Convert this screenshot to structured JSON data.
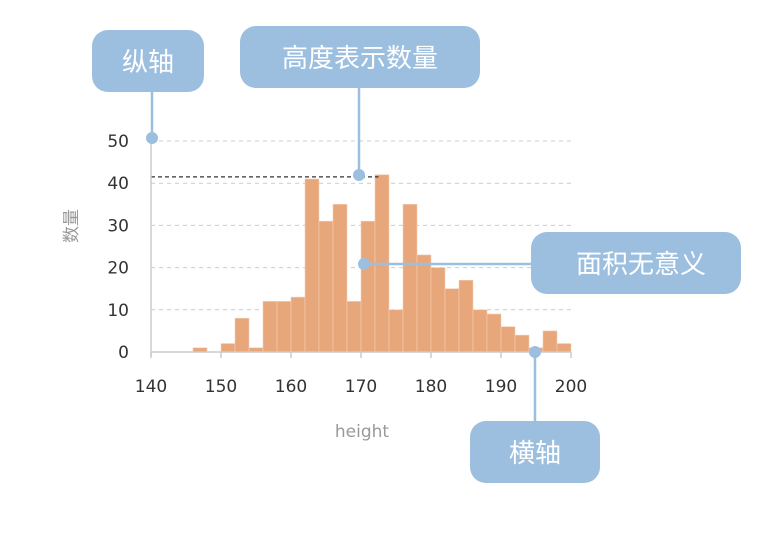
{
  "chart_data": {
    "type": "bar",
    "xlabel": "height",
    "ylabel": "数量",
    "xlim": [
      140,
      200
    ],
    "ylim": [
      0,
      50
    ],
    "x_ticks": [
      140,
      150,
      160,
      170,
      180,
      190,
      200
    ],
    "y_ticks": [
      0,
      10,
      20,
      30,
      40,
      50
    ],
    "grid": true,
    "bin_width": 2,
    "bins": [
      {
        "x0": 140,
        "x1": 142,
        "value": 0
      },
      {
        "x0": 142,
        "x1": 144,
        "value": 0
      },
      {
        "x0": 144,
        "x1": 146,
        "value": 0
      },
      {
        "x0": 146,
        "x1": 148,
        "value": 1
      },
      {
        "x0": 148,
        "x1": 150,
        "value": 0
      },
      {
        "x0": 150,
        "x1": 152,
        "value": 2
      },
      {
        "x0": 152,
        "x1": 154,
        "value": 8
      },
      {
        "x0": 154,
        "x1": 156,
        "value": 1
      },
      {
        "x0": 156,
        "x1": 158,
        "value": 12
      },
      {
        "x0": 158,
        "x1": 160,
        "value": 12
      },
      {
        "x0": 160,
        "x1": 162,
        "value": 13
      },
      {
        "x0": 162,
        "x1": 164,
        "value": 41
      },
      {
        "x0": 164,
        "x1": 166,
        "value": 31
      },
      {
        "x0": 166,
        "x1": 168,
        "value": 35
      },
      {
        "x0": 168,
        "x1": 170,
        "value": 12
      },
      {
        "x0": 170,
        "x1": 172,
        "value": 31
      },
      {
        "x0": 172,
        "x1": 174,
        "value": 42
      },
      {
        "x0": 174,
        "x1": 176,
        "value": 10
      },
      {
        "x0": 176,
        "x1": 178,
        "value": 35
      },
      {
        "x0": 178,
        "x1": 180,
        "value": 23
      },
      {
        "x0": 180,
        "x1": 182,
        "value": 20
      },
      {
        "x0": 182,
        "x1": 184,
        "value": 15
      },
      {
        "x0": 184,
        "x1": 186,
        "value": 17
      },
      {
        "x0": 186,
        "x1": 188,
        "value": 10
      },
      {
        "x0": 188,
        "x1": 190,
        "value": 9
      },
      {
        "x0": 190,
        "x1": 192,
        "value": 6
      },
      {
        "x0": 192,
        "x1": 194,
        "value": 4
      },
      {
        "x0": 194,
        "x1": 196,
        "value": 1
      },
      {
        "x0": 196,
        "x1": 198,
        "value": 5
      },
      {
        "x0": 198,
        "x1": 200,
        "value": 2
      }
    ],
    "bar_color": "#e8a77b",
    "reference_line_value": 41.5
  },
  "annotations": {
    "y_axis": "纵轴",
    "bar_height": "高度表示数量",
    "area": "面积无意义",
    "x_axis": "横轴",
    "callout_color": "#9cbfdf"
  }
}
